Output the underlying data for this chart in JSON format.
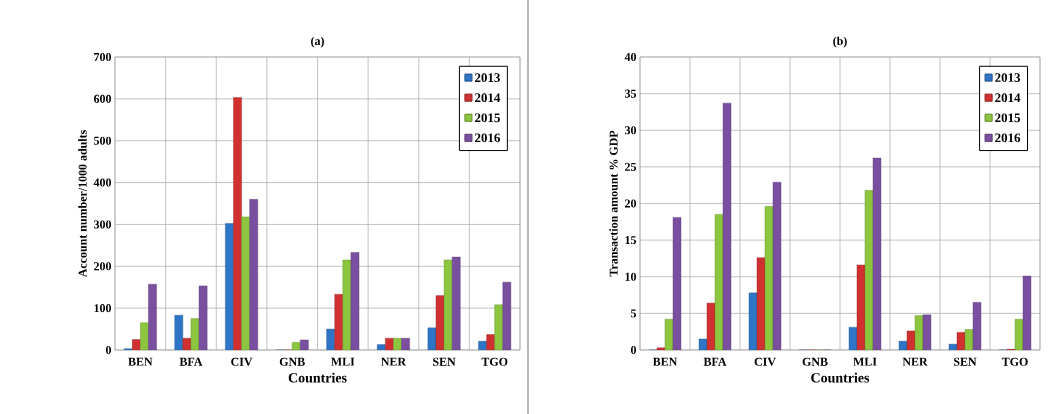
{
  "chart_data": [
    {
      "type": "bar",
      "title": "(a)",
      "xlabel": "Countries",
      "ylabel": "Account number/1000 adults",
      "categories": [
        "BEN",
        "BFA",
        "CIV",
        "GNB",
        "MLI",
        "NER",
        "SEN",
        "TGO"
      ],
      "series": [
        {
          "name": "2013",
          "color": "#2e75c8",
          "values": [
            3,
            83,
            302,
            0,
            50,
            13,
            53,
            21
          ]
        },
        {
          "name": "2014",
          "color": "#d03030",
          "values": [
            25,
            28,
            603,
            0,
            133,
            28,
            130,
            37
          ]
        },
        {
          "name": "2015",
          "color": "#8cc63e",
          "values": [
            65,
            75,
            318,
            18,
            215,
            28,
            215,
            108
          ]
        },
        {
          "name": "2016",
          "color": "#7b4fa0",
          "values": [
            157,
            153,
            360,
            24,
            233,
            28,
            222,
            162
          ]
        }
      ],
      "ylim": [
        0,
        700
      ],
      "yticks": [
        0,
        100,
        200,
        300,
        400,
        500,
        600,
        700
      ],
      "grid": true,
      "legend": "top right"
    },
    {
      "type": "bar",
      "title": "(b)",
      "xlabel": "Countries",
      "ylabel": "Transaction amount % GDP",
      "categories": [
        "BEN",
        "BFA",
        "CIV",
        "GNB",
        "MLI",
        "NER",
        "SEN",
        "TGO"
      ],
      "series": [
        {
          "name": "2013",
          "color": "#2e75c8",
          "values": [
            0,
            1.5,
            7.8,
            0,
            3.1,
            1.2,
            0.8,
            0
          ]
        },
        {
          "name": "2014",
          "color": "#d03030",
          "values": [
            0.3,
            6.4,
            12.6,
            0,
            11.6,
            2.6,
            2.4,
            0.1
          ]
        },
        {
          "name": "2015",
          "color": "#8cc63e",
          "values": [
            4.2,
            18.5,
            19.6,
            0,
            21.8,
            4.7,
            2.8,
            4.2
          ]
        },
        {
          "name": "2016",
          "color": "#7b4fa0",
          "values": [
            18.1,
            33.7,
            22.9,
            0,
            26.2,
            4.8,
            6.5,
            10.1
          ]
        }
      ],
      "ylim": [
        0,
        40
      ],
      "yticks": [
        0,
        5,
        10,
        15,
        20,
        25,
        30,
        35,
        40
      ],
      "grid": true,
      "legend": "top right"
    }
  ]
}
